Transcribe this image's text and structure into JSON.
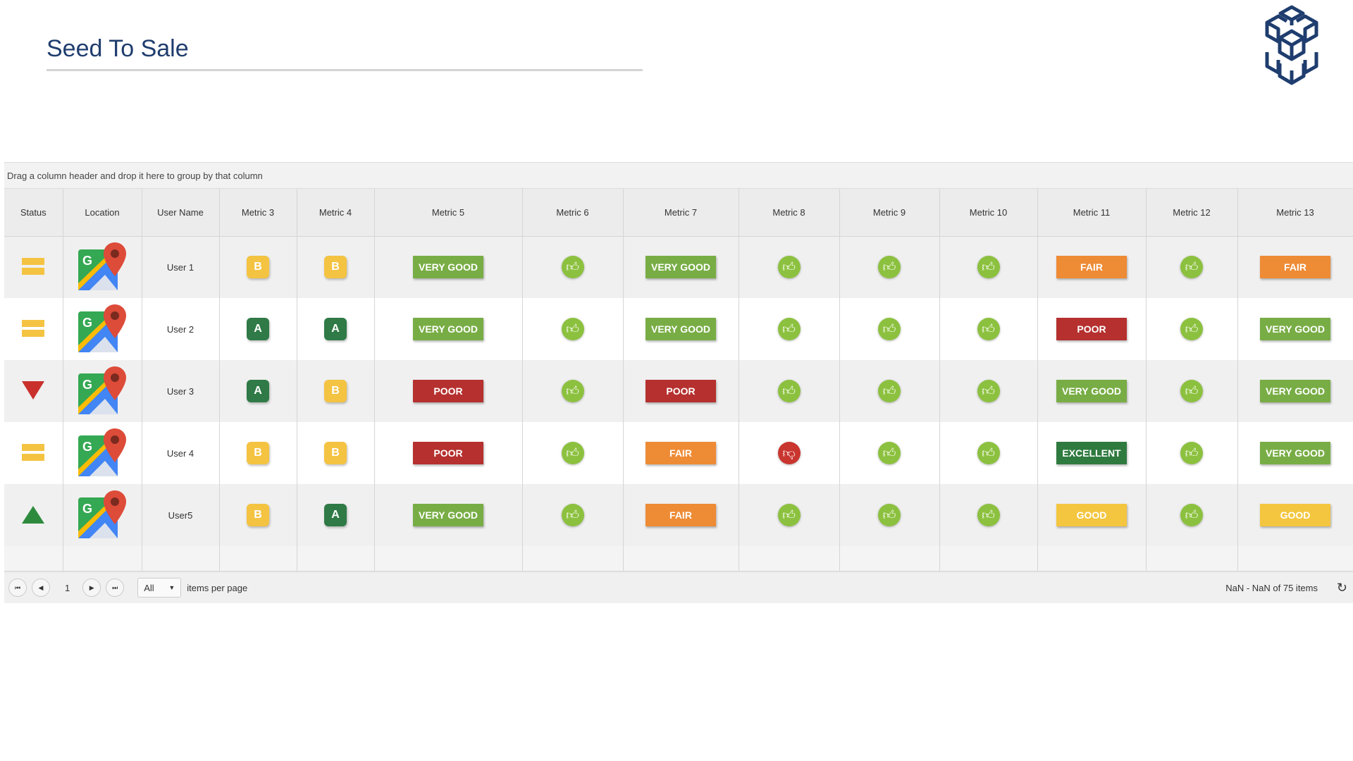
{
  "header": {
    "title": "Seed To Sale",
    "logo": "cubes-logo"
  },
  "grid": {
    "group_hint": "Drag a column header and drop it here to group by that column",
    "columns": [
      "Status",
      "Location",
      "User Name",
      "Metric 3",
      "Metric 4",
      "Metric 5",
      "Metric 6",
      "Metric 7",
      "Metric 8",
      "Metric 9",
      "Metric 10",
      "Metric 11",
      "Metric 12",
      "Metric 13"
    ],
    "rows": [
      {
        "status": "neutral",
        "user": "User 1",
        "m3": "B",
        "m4": "B",
        "m5": "VERY GOOD",
        "m6": "up",
        "m7": "VERY GOOD",
        "m8": "up",
        "m9": "up",
        "m10": "up",
        "m11": "FAIR",
        "m12": "up",
        "m13": "FAIR"
      },
      {
        "status": "neutral",
        "user": "User 2",
        "m3": "A",
        "m4": "A",
        "m5": "VERY GOOD",
        "m6": "up",
        "m7": "VERY GOOD",
        "m8": "up",
        "m9": "up",
        "m10": "up",
        "m11": "POOR",
        "m12": "up",
        "m13": "VERY GOOD"
      },
      {
        "status": "down",
        "user": "User 3",
        "m3": "A",
        "m4": "B",
        "m5": "POOR",
        "m6": "up",
        "m7": "POOR",
        "m8": "up",
        "m9": "up",
        "m10": "up",
        "m11": "VERY GOOD",
        "m12": "up",
        "m13": "VERY GOOD"
      },
      {
        "status": "neutral",
        "user": "User 4",
        "m3": "B",
        "m4": "B",
        "m5": "POOR",
        "m6": "up",
        "m7": "FAIR",
        "m8": "down",
        "m9": "up",
        "m10": "up",
        "m11": "EXCELLENT",
        "m12": "up",
        "m13": "VERY GOOD"
      },
      {
        "status": "up",
        "user": "User5",
        "m3": "B",
        "m4": "A",
        "m5": "VERY GOOD",
        "m6": "up",
        "m7": "FAIR",
        "m8": "up",
        "m9": "up",
        "m10": "up",
        "m11": "GOOD",
        "m12": "up",
        "m13": "GOOD"
      }
    ]
  },
  "colors": {
    "VERY GOOD": "#78ad45",
    "FAIR": "#ee8b35",
    "POOR": "#b5302e",
    "EXCELLENT": "#2f7a3f",
    "GOOD": "#f4c63f",
    "A": "#2f7a46",
    "B": "#f4c342",
    "up": "#8cc13f",
    "down": "#c9352f",
    "neutral": "#f4c342",
    "brand": "#1f3d6e"
  },
  "footer": {
    "page": "1",
    "page_size": "All",
    "per_page_label": "items per page",
    "info": "NaN - NaN of 75 items"
  }
}
